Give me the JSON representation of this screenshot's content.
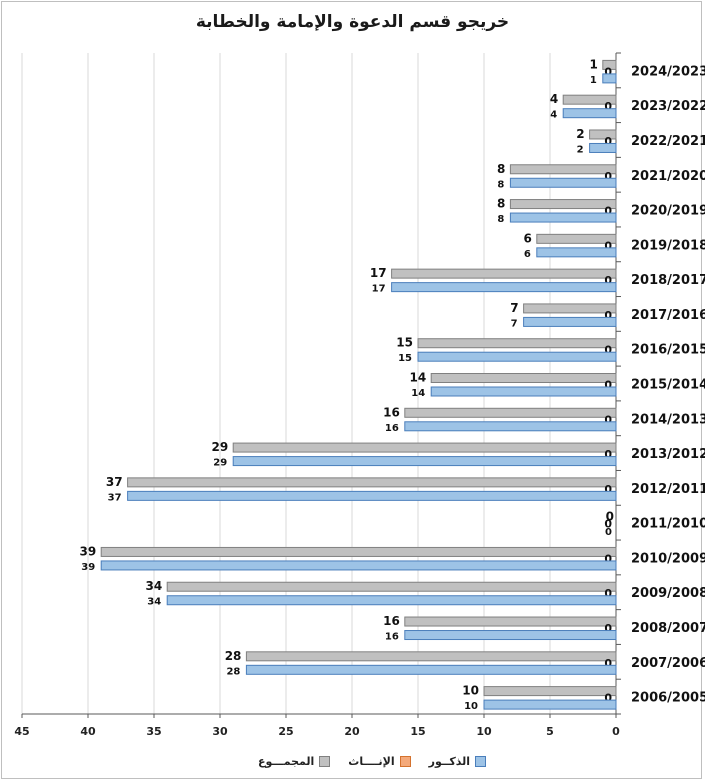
{
  "chart_data": {
    "type": "bar",
    "orientation": "horizontal",
    "x_direction": "reversed",
    "title": "خريجو قسم الدعوة والإمامة والخطابة",
    "categories": [
      "2024/2023",
      "2023/2022",
      "2022/2021",
      "2021/2020",
      "2020/2019",
      "2019/2018",
      "2018/2017",
      "2017/2016",
      "2016/2015",
      "2015/2014",
      "2014/2013",
      "2013/2012",
      "2012/2011",
      "2011/2010",
      "2010/2009",
      "2009/2008",
      "2008/2007",
      "2007/2006",
      "2006/2005"
    ],
    "series": [
      {
        "name": "المجمـــوع",
        "color": "#c0c0c0",
        "values": [
          1,
          4,
          2,
          8,
          8,
          6,
          17,
          7,
          15,
          14,
          16,
          29,
          37,
          0,
          39,
          34,
          16,
          28,
          10
        ]
      },
      {
        "name": "الإنــــاث",
        "color": "#f4a97a",
        "values": [
          0,
          0,
          0,
          0,
          0,
          0,
          0,
          0,
          0,
          0,
          0,
          0,
          0,
          0,
          0,
          0,
          0,
          0,
          0
        ]
      },
      {
        "name": "الذكــور",
        "color": "#9dc3e6",
        "values": [
          1,
          4,
          2,
          8,
          8,
          6,
          17,
          7,
          15,
          14,
          16,
          29,
          37,
          0,
          39,
          34,
          16,
          28,
          10
        ]
      }
    ],
    "xlim": [
      0,
      45
    ],
    "xticks": [
      "0",
      "5",
      "10",
      "15",
      "20",
      "25",
      "30",
      "35",
      "40",
      "45"
    ],
    "grid": true,
    "legend_position": "bottom"
  }
}
